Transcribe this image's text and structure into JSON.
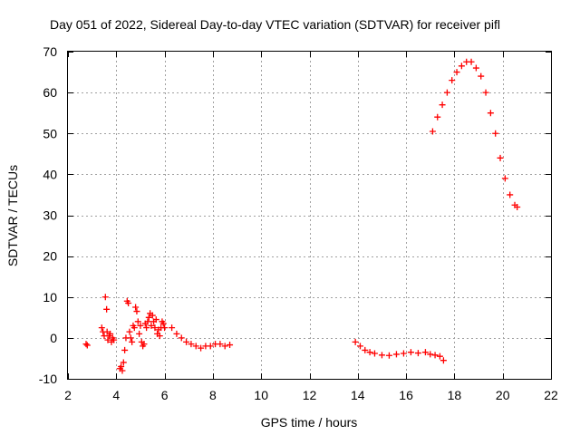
{
  "chart_data": {
    "type": "scatter",
    "title": "Day 051 of 2022, Sidereal Day-to-day VTEC variation (SDTVAR) for receiver pifl",
    "xlabel": "GPS time / hours",
    "ylabel": "SDTVAR / TECUs",
    "xlim": [
      2,
      22
    ],
    "ylim": [
      -10,
      70
    ],
    "xticks": [
      "2",
      "4",
      "6",
      "8",
      "10",
      "12",
      "14",
      "16",
      "18",
      "20",
      "22"
    ],
    "yticks": [
      "-10",
      "0",
      "10",
      "20",
      "30",
      "40",
      "50",
      "60",
      "70"
    ],
    "grid": true,
    "marker": "+",
    "color": "#ff0000",
    "series": [
      {
        "name": "SDTVAR",
        "x": [
          2.75,
          2.8,
          3.4,
          3.45,
          3.5,
          3.55,
          3.6,
          3.62,
          3.65,
          3.7,
          3.75,
          3.8,
          3.85,
          3.9,
          4.15,
          4.2,
          4.25,
          4.3,
          4.35,
          4.4,
          4.45,
          4.5,
          4.55,
          4.6,
          4.65,
          4.7,
          4.75,
          4.8,
          4.85,
          4.9,
          4.95,
          5.0,
          5.05,
          5.1,
          5.15,
          5.2,
          5.25,
          5.3,
          5.35,
          5.4,
          5.45,
          5.5,
          5.55,
          5.6,
          5.65,
          5.7,
          5.75,
          5.8,
          5.85,
          5.9,
          5.95,
          6.0,
          6.3,
          6.5,
          6.7,
          6.9,
          7.1,
          7.3,
          7.5,
          7.7,
          7.9,
          8.1,
          8.3,
          8.5,
          8.7,
          13.9,
          14.1,
          14.3,
          14.5,
          14.7,
          15.0,
          15.3,
          15.6,
          15.9,
          16.2,
          16.5,
          16.8,
          17.0,
          17.2,
          17.4,
          17.55,
          17.1,
          17.3,
          17.5,
          17.7,
          17.9,
          18.1,
          18.3,
          18.5,
          18.7,
          18.9,
          19.1,
          19.3,
          19.5,
          19.7,
          19.9,
          20.1,
          20.3,
          20.5,
          20.6
        ],
        "y": [
          -1.5,
          -1.8,
          2.5,
          1.5,
          0.5,
          10.0,
          7.0,
          1.5,
          -0.5,
          0.5,
          1.0,
          -1.0,
          0.0,
          -0.5,
          -7.5,
          -7.0,
          -8.0,
          -6.0,
          -3.0,
          0.0,
          9.0,
          8.5,
          1.5,
          0.0,
          -1.0,
          3.0,
          2.5,
          7.5,
          6.5,
          4.0,
          1.0,
          3.0,
          -1.0,
          -2.0,
          -1.5,
          3.5,
          2.5,
          4.0,
          5.0,
          6.0,
          3.0,
          5.5,
          4.0,
          2.5,
          4.5,
          1.0,
          2.0,
          0.5,
          2.5,
          4.0,
          3.5,
          2.5,
          2.5,
          1.0,
          0.0,
          -1.0,
          -1.5,
          -2.0,
          -2.5,
          -2.0,
          -2.0,
          -1.5,
          -1.5,
          -2.0,
          -1.7,
          -1.0,
          -2.0,
          -3.0,
          -3.5,
          -3.8,
          -4.2,
          -4.3,
          -4.0,
          -3.8,
          -3.5,
          -3.7,
          -3.5,
          -4.0,
          -4.2,
          -4.5,
          -5.5,
          50.5,
          54.0,
          57.0,
          60.0,
          63.0,
          65.0,
          66.5,
          67.5,
          67.5,
          66.0,
          64.0,
          60.0,
          55.0,
          50.0,
          44.0,
          39.0,
          35.0,
          32.5,
          32.0
        ]
      }
    ]
  }
}
